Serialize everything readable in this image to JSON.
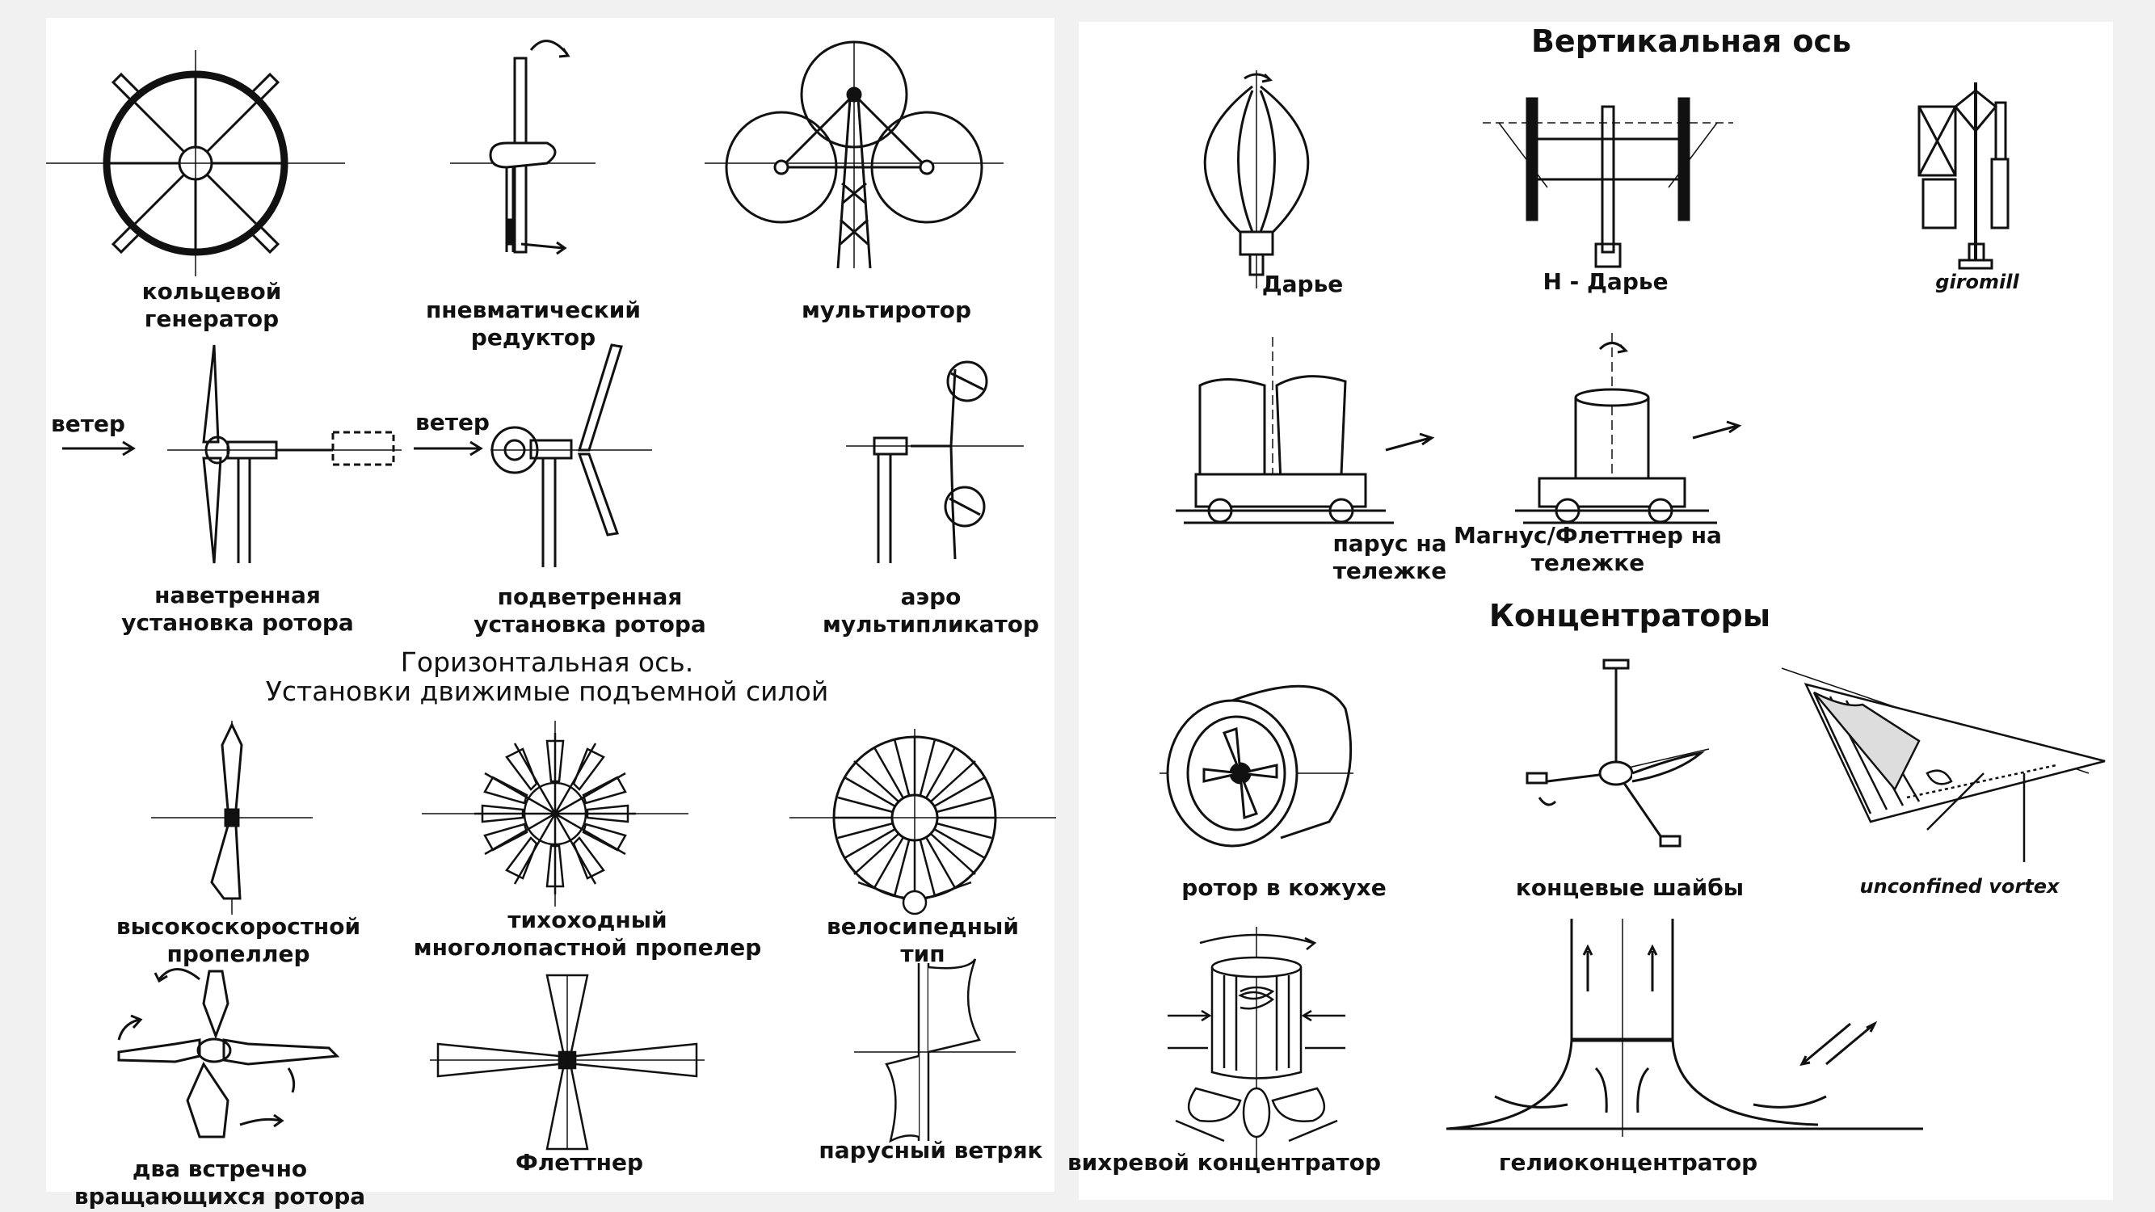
{
  "left": {
    "top_captions": {
      "ring_generator": [
        "кольцевой",
        "генератор"
      ],
      "pneumatic_reducer": [
        "пневматический",
        "редуктор"
      ],
      "multirotor": [
        "мультиротор"
      ]
    },
    "wind_label_1": "ветер",
    "wind_label_2": "ветер",
    "middle_captions": {
      "upwind": [
        "наветренная",
        "установка ротора"
      ],
      "downwind": [
        "подветренная",
        "установка ротора"
      ],
      "aero_multiplier": [
        "аэро",
        "мультипликатор"
      ]
    },
    "section_title": [
      "Горизонтальная ось.",
      "Установки движимые подъемной силой"
    ],
    "lift_captions": {
      "high_speed": [
        "высокоскоростной",
        "пропеллер"
      ],
      "slow_multiblade": [
        "тихоходный",
        "многолопастной пропелер"
      ],
      "bicycle": [
        "велосипедный",
        "тип"
      ]
    },
    "bottom_captions": {
      "counter_rotating": [
        "два встречно",
        "вращающихся ротора"
      ],
      "flettner": [
        "Флеттнер"
      ],
      "sail": [
        "парусный ветряк"
      ]
    }
  },
  "right": {
    "vertical_title": "Вертикальная ось",
    "vertical_captions": {
      "darrieus": "Дарье",
      "h_darrieus": "H - Дарье",
      "giromill": "giromill"
    },
    "cart_captions": {
      "sail_cart": [
        "парус на",
        "тележке"
      ],
      "magnus_cart": [
        "Магнус/Флеттнер на",
        "тележке"
      ]
    },
    "concentrators_title": "Концентраторы",
    "concentrator_captions": {
      "shrouded": "ротор в кожухе",
      "tip_vanes": "концевые шайбы",
      "vortex": "unconfined vortex",
      "vortex_concentrator": "вихревой концентратор",
      "solar_concentrator": "гелиоконцентратор"
    }
  }
}
